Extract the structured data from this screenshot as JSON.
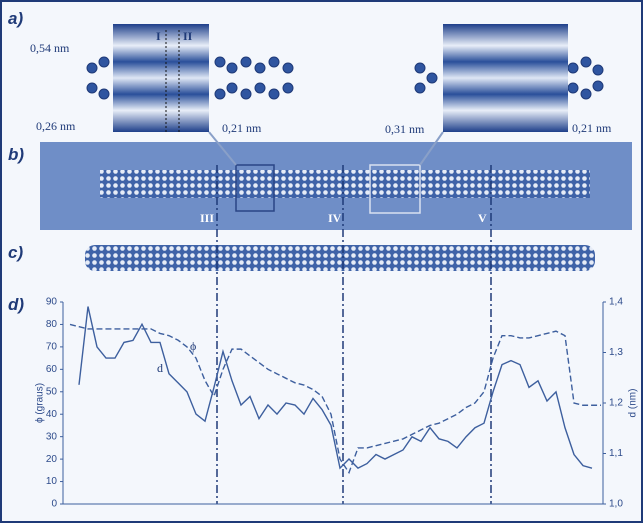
{
  "panels": {
    "a": "a)",
    "b": "b)",
    "c": "c)",
    "d": "d)"
  },
  "panel_a": {
    "left_top": "0,54 nm",
    "left_bottom": "0,26 nm",
    "left_right": "0,21 nm",
    "line_1": "I",
    "line_2": "II",
    "right_left": "0,31 nm",
    "right_right": "0,21 nm"
  },
  "panel_b": {
    "marker_3": "III",
    "marker_4": "IV",
    "marker_5": "V"
  },
  "chart_data": {
    "type": "line",
    "ylabel": "ϕ (graus)",
    "y2label": "d (nm)",
    "categories": [
      null,
      null,
      null,
      null,
      null,
      null,
      null,
      null,
      null,
      null,
      null,
      null,
      null,
      null,
      null,
      null,
      null,
      null,
      null,
      null,
      null,
      null,
      null,
      null,
      null,
      null,
      null,
      null,
      null,
      null,
      null,
      null,
      null,
      null,
      null,
      null,
      null,
      null,
      null,
      null,
      null,
      null,
      null,
      null,
      null,
      null,
      null,
      null,
      null,
      null,
      null,
      null,
      null,
      null,
      null,
      null,
      null,
      null,
      null,
      null
    ],
    "ylim": [
      0,
      90
    ],
    "yticks": [
      0,
      10,
      20,
      30,
      40,
      50,
      60,
      70,
      80,
      90
    ],
    "y2lim": [
      1.0,
      1.4
    ],
    "y2ticks": [
      {
        "value": 1.0,
        "label": "1,0"
      },
      {
        "value": 1.1,
        "label": "1,1"
      },
      {
        "value": 1.2,
        "label": "1,2"
      },
      {
        "value": 1.3,
        "label": "1,3"
      },
      {
        "value": 1.4,
        "label": "1,4"
      }
    ],
    "series": [
      {
        "name": "ϕ",
        "color": "#3d5f9e",
        "dash": true,
        "values": [
          80,
          79,
          78,
          78,
          78,
          78,
          78,
          78,
          78,
          78,
          76,
          75,
          73,
          70,
          65,
          55,
          48,
          60,
          69,
          69,
          66,
          63,
          60,
          58,
          56,
          54,
          53,
          51,
          48,
          40,
          20,
          14,
          25,
          25,
          26,
          27,
          28,
          29,
          31,
          33,
          35,
          36,
          38,
          40,
          43,
          45,
          50,
          65,
          75,
          75,
          74,
          74,
          75,
          76,
          77,
          75,
          45,
          44,
          44,
          44
        ]
      },
      {
        "name": "d",
        "color": "#3d5f9e",
        "dash": false,
        "axis": "y2",
        "values": [
          null,
          1.236,
          1.391,
          1.311,
          1.289,
          1.289,
          1.32,
          1.324,
          1.356,
          1.32,
          1.32,
          1.258,
          1.24,
          1.222,
          1.178,
          1.164,
          1.231,
          1.302,
          1.244,
          1.196,
          1.213,
          1.169,
          1.196,
          1.178,
          1.2,
          1.196,
          1.178,
          1.209,
          1.187,
          1.156,
          1.071,
          1.089,
          1.071,
          1.08,
          1.098,
          1.089,
          1.098,
          1.107,
          1.133,
          1.124,
          1.151,
          1.129,
          1.124,
          1.111,
          1.133,
          1.151,
          1.16,
          1.222,
          1.276,
          1.284,
          1.276,
          1.231,
          1.244,
          1.204,
          1.222,
          1.151,
          1.098,
          1.076,
          1.071,
          null
        ]
      }
    ]
  }
}
